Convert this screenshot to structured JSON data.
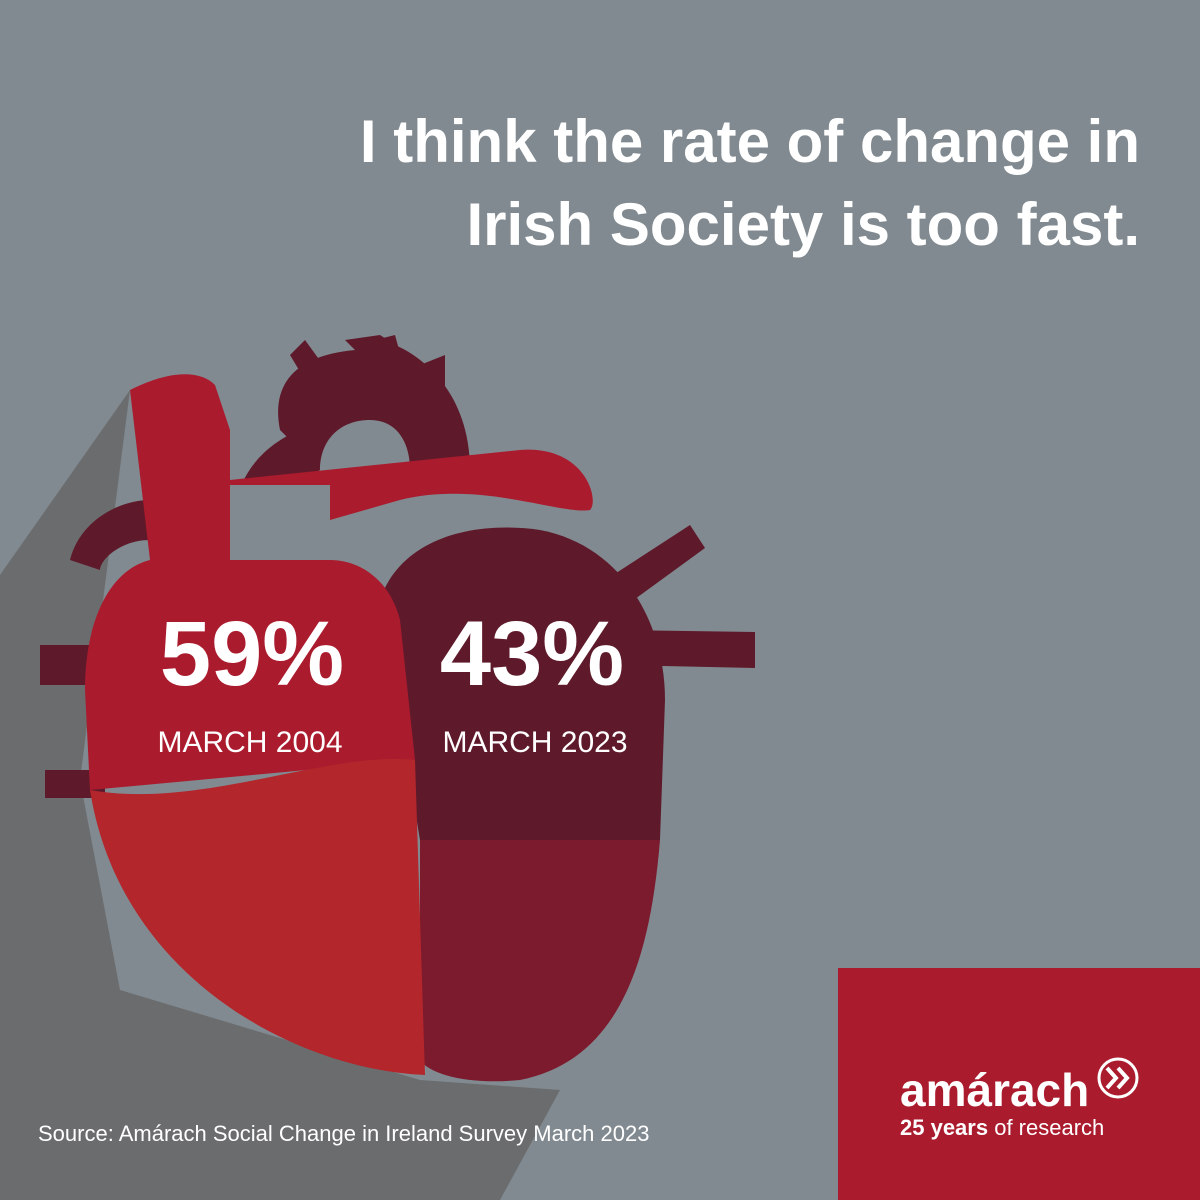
{
  "title": {
    "lines": [
      "I think the rate of change in",
      "Irish Society is too fast."
    ]
  },
  "stats": [
    {
      "value": "59%",
      "label": "MARCH 2004"
    },
    {
      "value": "43%",
      "label": "MARCH 2023"
    }
  ],
  "source": "Source: Amárach Social Change in Ireland Survey March 2023",
  "brand": {
    "name": "amárach",
    "tagline_bold": "25 years",
    "tagline_rest": "of research"
  }
}
